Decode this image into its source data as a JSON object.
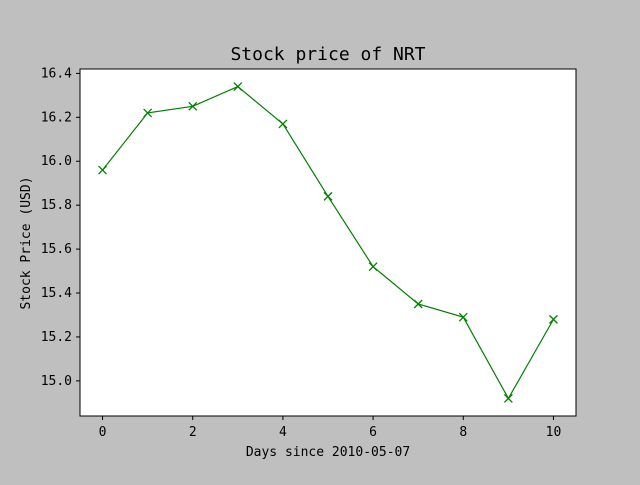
{
  "chart_data": {
    "type": "line",
    "title": "Stock price of NRT",
    "xlabel": "Days since 2010-05-07",
    "ylabel": "Stock Price (USD)",
    "x": [
      0,
      1,
      2,
      3,
      4,
      5,
      6,
      7,
      8,
      9,
      10
    ],
    "series": [
      {
        "values": [
          15.96,
          16.22,
          16.25,
          16.34,
          16.17,
          15.84,
          15.52,
          15.35,
          15.29,
          14.92,
          15.28
        ],
        "color": "#008000",
        "marker": "x"
      }
    ],
    "xlim": [
      -0.5,
      10.5
    ],
    "ylim": [
      14.84,
      16.42
    ],
    "xticks": [
      0,
      2,
      4,
      6,
      8,
      10
    ],
    "yticks": [
      15.0,
      15.2,
      15.4,
      15.6,
      15.8,
      16.0,
      16.2,
      16.4
    ],
    "ytick_labels": [
      "15.0",
      "15.2",
      "15.4",
      "15.6",
      "15.8",
      "16.0",
      "16.2",
      "16.4"
    ],
    "grid": false,
    "figure_background": "#bfbfbf",
    "plot_background": "#ffffff"
  }
}
